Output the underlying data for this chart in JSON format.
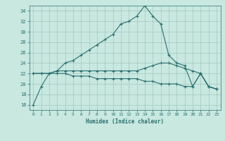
{
  "xlabel": "Humidex (Indice chaleur)",
  "bg_color": "#c8e8e0",
  "grid_color": "#a0c8c0",
  "line_color": "#2a7070",
  "xlim": [
    -0.5,
    23.5
  ],
  "ylim": [
    15,
    35
  ],
  "xticks": [
    0,
    1,
    2,
    3,
    4,
    5,
    6,
    7,
    8,
    9,
    10,
    11,
    12,
    13,
    14,
    15,
    16,
    17,
    18,
    19,
    20,
    21,
    22,
    23
  ],
  "yticks": [
    16,
    18,
    20,
    22,
    24,
    26,
    28,
    30,
    32,
    34
  ],
  "curve1_x": [
    0,
    1,
    2,
    3,
    4,
    5,
    6,
    7,
    8,
    9,
    10,
    11,
    12,
    13,
    14,
    15,
    16,
    17,
    18,
    19,
    20,
    21,
    22,
    23
  ],
  "curve1_y": [
    16,
    19.5,
    22,
    22.5,
    24,
    24.5,
    25.5,
    26.5,
    27.5,
    28.5,
    29.5,
    31.5,
    32,
    33,
    35,
    33,
    31.5,
    25.5,
    24,
    23.5,
    19.5,
    22,
    19.5,
    19
  ],
  "curve2_x": [
    0,
    1,
    2,
    3,
    4,
    5,
    6,
    7,
    8,
    9,
    10,
    11,
    12,
    13,
    14,
    15,
    16,
    17,
    18,
    19,
    20,
    21,
    22,
    23
  ],
  "curve2_y": [
    22,
    22,
    22,
    22.5,
    22.5,
    22.5,
    22.5,
    22.5,
    22.5,
    22.5,
    22.5,
    22.5,
    22.5,
    22.5,
    23,
    23.5,
    24,
    24,
    23.5,
    23,
    22.5,
    22,
    19.5,
    19
  ],
  "curve3_x": [
    0,
    1,
    2,
    3,
    4,
    5,
    6,
    7,
    8,
    9,
    10,
    11,
    12,
    13,
    14,
    15,
    16,
    17,
    18,
    19,
    20,
    21,
    22,
    23
  ],
  "curve3_y": [
    22,
    22,
    22,
    22,
    22,
    21.5,
    21.5,
    21.5,
    21,
    21,
    21,
    21,
    21,
    21,
    20.5,
    20.5,
    20,
    20,
    20,
    19.5,
    19.5,
    22,
    19.5,
    19
  ]
}
